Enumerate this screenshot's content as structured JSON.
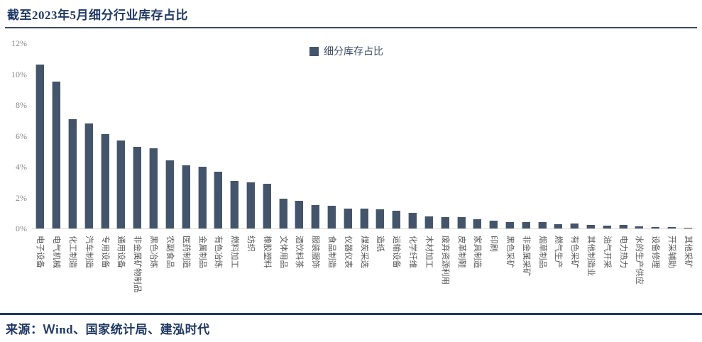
{
  "title": "截至2023年5月细分行业库存占比",
  "legend": {
    "label": "细分库存占比",
    "marker_color": "#44546A"
  },
  "source": "来源：Ｗind、国家统计局、建泓时代",
  "colors": {
    "bar": "#44546A",
    "title_text": "#1F3864",
    "title_rule": "#3B4A63",
    "footer_rule": "#1F3864",
    "y_tick_text": "#8C8C8C",
    "x_label_text": "#595959",
    "baseline": "#D9D9D9",
    "background": "#FFFFFF"
  },
  "chart_data": {
    "type": "bar",
    "title": "截至2023年5月细分行业库存占比",
    "legend_entries": [
      "细分库存占比"
    ],
    "legend_position": "top-center",
    "grid": false,
    "ylabel": "",
    "xlabel": "",
    "ylim": [
      0,
      12
    ],
    "yticks": [
      "0%",
      "2%",
      "4%",
      "6%",
      "8%",
      "10%",
      "12%"
    ],
    "ytick_values": [
      0,
      2,
      4,
      6,
      8,
      10,
      12
    ],
    "unit": "%",
    "categories": [
      "电子设备",
      "电气机械",
      "化工制造",
      "汽车制造",
      "专用设备",
      "通用设备",
      "非金属矿物制品",
      "黑色冶炼",
      "农副食品",
      "医药制造",
      "金属制品",
      "有色冶炼",
      "燃料加工",
      "纺织",
      "橡胶塑料",
      "文体用品",
      "酒饮料茶",
      "服装服饰",
      "食品制造",
      "仪器仪表",
      "煤炭采选",
      "造纸",
      "运输设备",
      "化学纤维",
      "木材加工",
      "废弃资源利用",
      "皮革制鞋",
      "家具制造",
      "印刷",
      "黑色采矿",
      "非金属采矿",
      "烟草制品",
      "燃气生产",
      "有色采矿",
      "其他制造业",
      "油气开采",
      "电力热力",
      "水的生产供应",
      "设备修理",
      "开采辅助",
      "其他采矿"
    ],
    "values": [
      10.6,
      9.5,
      7.1,
      6.8,
      6.1,
      5.7,
      5.3,
      5.2,
      4.4,
      4.1,
      4.0,
      3.7,
      3.1,
      3.0,
      2.9,
      1.95,
      1.8,
      1.5,
      1.48,
      1.3,
      1.3,
      1.25,
      1.15,
      1.0,
      0.8,
      0.75,
      0.72,
      0.58,
      0.5,
      0.42,
      0.41,
      0.4,
      0.28,
      0.33,
      0.22,
      0.18,
      0.21,
      0.14,
      0.09,
      0.08,
      0.06
    ]
  }
}
